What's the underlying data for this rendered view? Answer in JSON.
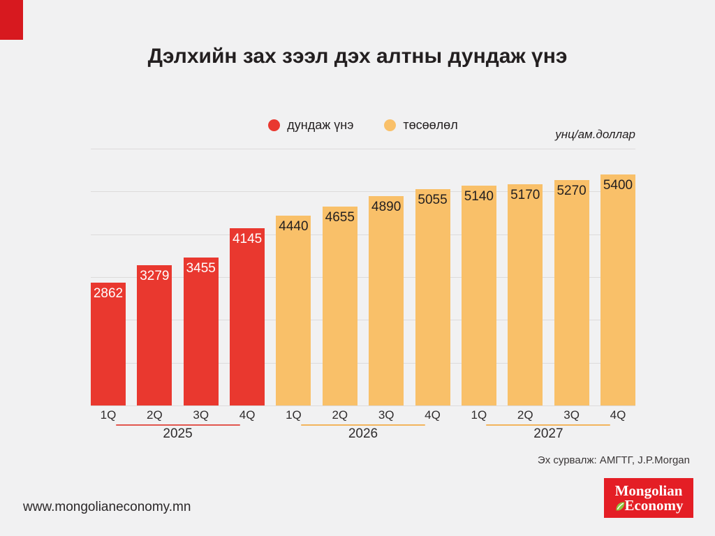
{
  "page": {
    "background": "#f1f1f2",
    "corner_color": "#d7191f",
    "title": "Дэлхийн зах зээл дэх алтны дундаж үнэ"
  },
  "legend": {
    "items": [
      {
        "label": "дундаж үнэ",
        "color": "#e9382f"
      },
      {
        "label": "төсөөлөл",
        "color": "#f9c069"
      }
    ]
  },
  "unit_label": "унц/ам.доллар",
  "chart_data": {
    "type": "bar",
    "title": "Дэлхийн зах зээл дэх алтны дундаж үнэ",
    "unit": "унц/ам.доллар",
    "xlabel": "",
    "ylabel": "",
    "ylim": [
      0,
      6000
    ],
    "gridline_step": 1000,
    "grid": true,
    "y_tick_labels_visible": false,
    "legend_position": "top-center",
    "series": [
      {
        "name": "дундаж үнэ",
        "color": "#e9382f",
        "x": [
          "2025 1Q",
          "2025 2Q",
          "2025 3Q",
          "2025 4Q"
        ],
        "values": [
          2862,
          3279,
          3455,
          4145
        ]
      },
      {
        "name": "төсөөлөл",
        "color": "#f9c069",
        "x": [
          "2026 1Q",
          "2026 2Q",
          "2026 3Q",
          "2026 4Q",
          "2027 1Q",
          "2027 2Q",
          "2027 3Q",
          "2027 4Q"
        ],
        "values": [
          4440,
          4655,
          4890,
          5055,
          5140,
          5170,
          5270,
          5400
        ]
      }
    ],
    "groups": [
      {
        "year": "2025",
        "series": "дундаж үнэ",
        "quarters": [
          "1Q",
          "2Q",
          "3Q",
          "4Q"
        ],
        "values": [
          2862,
          3279,
          3455,
          4145
        ],
        "bar_color": "#e9382f",
        "value_label_color": "#ffffff",
        "underline_color": "#e2564e"
      },
      {
        "year": "2026",
        "series": "төсөөлөл",
        "quarters": [
          "1Q",
          "2Q",
          "3Q",
          "4Q"
        ],
        "values": [
          4440,
          4655,
          4890,
          5055
        ],
        "bar_color": "#f9c069",
        "value_label_color": "#231f20",
        "underline_color": "#f2b45c"
      },
      {
        "year": "2027",
        "series": "төсөөлөл",
        "quarters": [
          "1Q",
          "2Q",
          "3Q",
          "4Q"
        ],
        "values": [
          5140,
          5170,
          5270,
          5400
        ],
        "bar_color": "#f9c069",
        "value_label_color": "#231f20",
        "underline_color": "#f2b45c"
      }
    ]
  },
  "footer": {
    "source": "Эх сурвалж: АМГТГ, J.P.Morgan",
    "website": "www.mongolianeconomy.mn"
  },
  "logo": {
    "line1": "Mongolian",
    "line2": "Economy",
    "background": "#e41e25",
    "leaf_color": "#8dc63f"
  }
}
